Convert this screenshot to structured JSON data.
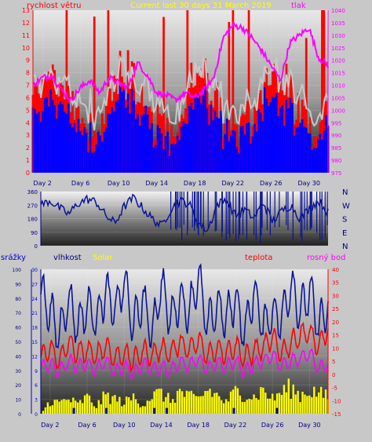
{
  "title": "Current last 30 days 31 March 2019",
  "colors": {
    "background": "#c8c8c8",
    "wind_speed": "#ff0000",
    "wind_avg": "#0000ff",
    "wind_gust_avg": "#c8c8c8",
    "pressure": "#ff00ff",
    "wind_dir": "#0a1496",
    "humidity": "#0a1496",
    "solar": "#ffff00",
    "temperature": "#ff0000",
    "dewpoint": "#ff00ff",
    "rain": "#0000cc",
    "label_blue": "#0000cc",
    "label_yellow": "#ffff00",
    "label_red": "#ff0000",
    "label_magenta": "#ff00ff",
    "label_navy": "#000080"
  },
  "x_axis": {
    "tick_labels": [
      "Day 2",
      "Day 6",
      "Day 10",
      "Day 14",
      "Day 18",
      "Day 22",
      "Day 26",
      "Day 30"
    ],
    "days": [
      2,
      6,
      10,
      14,
      18,
      22,
      26,
      30
    ],
    "range": [
      1,
      32
    ]
  },
  "chart_data": [
    {
      "type": "line",
      "title": "Current last 30 days 31 March 2019",
      "left_axis_label": "rychlost větru",
      "right_axis_label": "tlak",
      "left_ticks": [
        "0",
        "1",
        "2",
        "3",
        "4",
        "5",
        "6",
        "7",
        "8",
        "9",
        "10",
        "11",
        "12",
        "13"
      ],
      "left_range": [
        0,
        13
      ],
      "right_ticks": [
        "975",
        "980",
        "985",
        "990",
        "995",
        "1000",
        "1005",
        "1010",
        "1015",
        "1020",
        "1025",
        "1030",
        "1035",
        "1040"
      ],
      "right_range": [
        975,
        1040
      ],
      "series": [
        {
          "name": "tlak",
          "axis": "right",
          "x": [
            1,
            2,
            3,
            4,
            5,
            6,
            7,
            8,
            9,
            10,
            11,
            12,
            13,
            14,
            15,
            16,
            17,
            18,
            19,
            20,
            21,
            22,
            23,
            24,
            25,
            26,
            27,
            28,
            29,
            30,
            31,
            32
          ],
          "values": [
            1010,
            1013,
            1014,
            1008,
            1004,
            1009,
            1012,
            1007,
            1013,
            1011,
            1009,
            1019,
            1014,
            1007,
            1006,
            1004,
            1007,
            1005,
            1008,
            1013,
            1029,
            1034,
            1033,
            1029,
            1024,
            1018,
            1012,
            1027,
            1030,
            1033,
            1021,
            1018
          ]
        }
      ]
    },
    {
      "type": "line",
      "title": "",
      "left_ticks": [
        "0",
        "90",
        "180",
        "270",
        "360"
      ],
      "left_range": [
        0,
        360
      ],
      "right_ticks": [
        "N",
        "W",
        "S",
        "E",
        "N"
      ],
      "series": [
        {
          "name": "",
          "x": [
            1,
            2,
            3,
            4,
            5,
            6,
            7,
            8,
            9,
            10,
            11,
            12,
            13,
            14,
            15,
            16,
            17,
            18,
            19,
            20,
            21,
            22,
            23,
            24,
            25,
            26,
            27,
            28,
            29,
            30,
            31,
            32
          ],
          "values": [
            270,
            300,
            250,
            210,
            280,
            310,
            290,
            200,
            150,
            260,
            320,
            250,
            180,
            130,
            240,
            300,
            280,
            150,
            100,
            270,
            310,
            200,
            240,
            180,
            290,
            160,
            230,
            270,
            180,
            250,
            300,
            220
          ]
        }
      ]
    },
    {
      "type": "line",
      "title": "",
      "labels": {
        "rain": "srážky",
        "humidity": "vlhkost",
        "solar": "Solar",
        "temperature": "teplota",
        "dewpoint": "rosný bod"
      },
      "left_ticks_humidity": [
        "0",
        "10",
        "20",
        "30",
        "40",
        "50",
        "60",
        "70",
        "80",
        "90",
        "100"
      ],
      "left_range_humidity": [
        0,
        100
      ],
      "left_ticks_rain": [
        "0",
        "3",
        "6",
        "9",
        "12",
        "15",
        "18",
        "21",
        "24",
        "27",
        "30"
      ],
      "left_range_rain": [
        0,
        30
      ],
      "right_ticks": [
        "-15",
        "-10",
        "-5",
        "0",
        "5",
        "10",
        "15",
        "20",
        "25",
        "30",
        "35",
        "40"
      ],
      "right_range": [
        -15,
        40
      ],
      "series": [
        {
          "name": "vlhkost",
          "x": [
            1,
            2,
            3,
            4,
            5,
            6,
            7,
            8,
            9,
            10,
            11,
            12,
            13,
            14,
            15,
            16,
            17,
            18,
            19,
            20,
            21,
            22,
            23,
            24,
            25,
            26,
            27,
            28,
            29,
            30,
            31,
            32
          ],
          "values": [
            85,
            70,
            55,
            80,
            60,
            75,
            65,
            85,
            70,
            92,
            60,
            80,
            55,
            90,
            65,
            80,
            70,
            95,
            60,
            75,
            65,
            80,
            55,
            85,
            60,
            70,
            65,
            90,
            70,
            85,
            60,
            75
          ]
        },
        {
          "name": "teplota",
          "x": [
            1,
            2,
            3,
            4,
            5,
            6,
            7,
            8,
            9,
            10,
            11,
            12,
            13,
            14,
            15,
            16,
            17,
            18,
            19,
            20,
            21,
            22,
            23,
            24,
            25,
            26,
            27,
            28,
            29,
            30,
            31,
            32
          ],
          "values": [
            6,
            10,
            5,
            12,
            8,
            9,
            7,
            11,
            6,
            8,
            5,
            9,
            7,
            10,
            8,
            12,
            9,
            13,
            7,
            10,
            8,
            11,
            6,
            9,
            10,
            14,
            8,
            12,
            15,
            16,
            10,
            18
          ]
        },
        {
          "name": "rosný bod",
          "x": [
            1,
            2,
            3,
            4,
            5,
            6,
            7,
            8,
            9,
            10,
            11,
            12,
            13,
            14,
            15,
            16,
            17,
            18,
            19,
            20,
            21,
            22,
            23,
            24,
            25,
            26,
            27,
            28,
            29,
            30,
            31,
            32
          ],
          "values": [
            2,
            4,
            1,
            5,
            3,
            4,
            2,
            5,
            1,
            3,
            0,
            4,
            2,
            3,
            1,
            5,
            3,
            6,
            2,
            4,
            3,
            5,
            1,
            4,
            5,
            7,
            3,
            5,
            6,
            8,
            2,
            4
          ]
        },
        {
          "name": "Solar",
          "x": [
            1,
            2,
            3,
            4,
            5,
            6,
            7,
            8,
            9,
            10,
            11,
            12,
            13,
            14,
            15,
            16,
            17,
            18,
            19,
            20,
            21,
            22,
            23,
            24,
            25,
            26,
            27,
            28,
            29,
            30,
            31,
            32
          ],
          "values": [
            0,
            7,
            6,
            8,
            5,
            9,
            4,
            10,
            8,
            6,
            9,
            5,
            10,
            11,
            7,
            12,
            9,
            8,
            13,
            10,
            6,
            12,
            11,
            9,
            13,
            8,
            12,
            14,
            10,
            13,
            11,
            9
          ]
        }
      ]
    }
  ]
}
